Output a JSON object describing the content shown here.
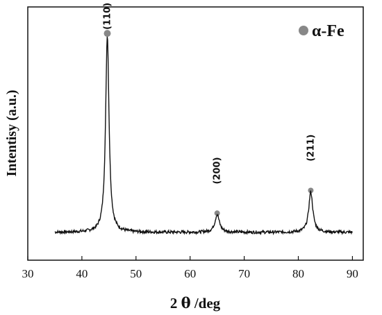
{
  "chart_data": {
    "type": "line",
    "title": "",
    "xlabel_main": "2 ",
    "xlabel_theta": "θ",
    "xlabel_unit": " /deg",
    "ylabel": "Intentisy (a.u.)",
    "xlim": [
      30,
      92
    ],
    "ylim": [
      0,
      100
    ],
    "x_ticks": [
      30,
      40,
      50,
      60,
      70,
      80,
      90
    ],
    "y_ticks_visible": false,
    "grid": false,
    "legend_position": "top-right",
    "series": [
      {
        "name": "α-Fe",
        "marker_color": "#888888",
        "line_color": "#111111",
        "range": [
          35,
          90
        ],
        "baseline": 11,
        "peaks": [
          {
            "x": 44.7,
            "y": 89,
            "width": 0.38
          },
          {
            "x": 65.0,
            "y": 18,
            "width": 0.5
          },
          {
            "x": 82.3,
            "y": 27,
            "width": 0.45
          }
        ]
      }
    ],
    "peak_labels": [
      {
        "label": "(110)",
        "x": 44.7,
        "y": 91
      },
      {
        "label": "(200)",
        "x": 65.0,
        "y": 30
      },
      {
        "label": "(211)",
        "x": 82.3,
        "y": 39
      }
    ]
  }
}
